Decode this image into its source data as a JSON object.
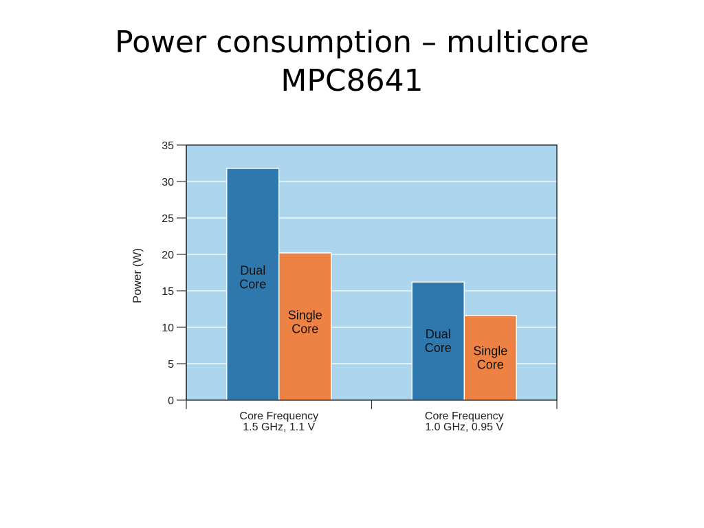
{
  "slide": {
    "title_line1": "Power consumption – multicore",
    "title_line2": "MPC8641"
  },
  "colors": {
    "plot_background": "#acd6ee",
    "dual_core": "#2e78ad",
    "single_core": "#ee8144",
    "gridline": "#ffffff",
    "axis": "#333333"
  },
  "chart_data": {
    "type": "bar",
    "title": "",
    "xlabel": "",
    "ylabel": "Power (W)",
    "ylim": [
      0,
      35
    ],
    "yticks": [
      0,
      5,
      10,
      15,
      20,
      25,
      30,
      35
    ],
    "grid": true,
    "categories": [
      [
        "Core Frequency",
        "1.5 GHz, 1.1 V"
      ],
      [
        "Core Frequency",
        "1.0 GHz, 0.95 V"
      ]
    ],
    "series": [
      {
        "label_lines": [
          "Dual",
          "Core"
        ],
        "values": [
          31.8,
          16.2
        ]
      },
      {
        "label_lines": [
          "Single",
          "Core"
        ],
        "values": [
          20.2,
          11.6
        ]
      }
    ]
  }
}
